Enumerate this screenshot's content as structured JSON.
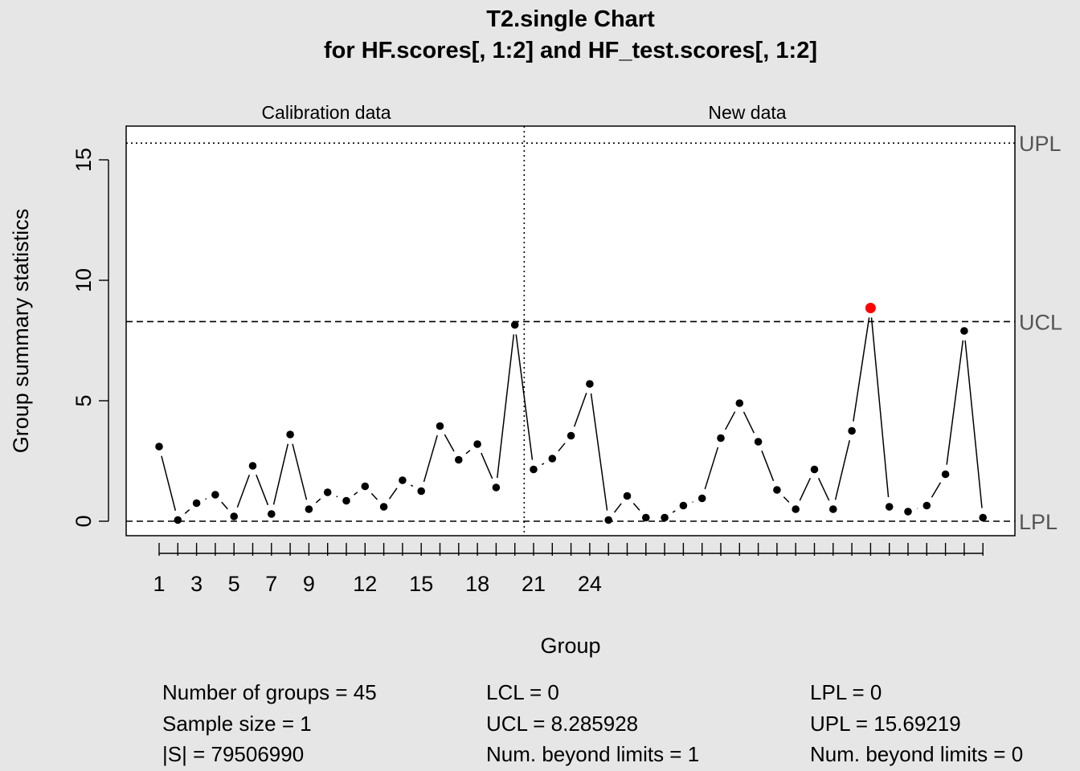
{
  "chart_data": {
    "type": "line",
    "title": "T2.single Chart",
    "subtitle": "for HF.scores[, 1:2] and HF_test.scores[, 1:2]",
    "xlabel": "Group",
    "ylabel": "Group summary statistics",
    "ylim": [
      -0.6,
      16.4
    ],
    "yticks": [
      "0",
      "5",
      "10",
      "15"
    ],
    "xtick_labels": [
      "1",
      "3",
      "5",
      "7",
      "9",
      "12",
      "15",
      "18",
      "21",
      "24"
    ],
    "xtick_label_positions": [
      1,
      3,
      5,
      7,
      9,
      12,
      15,
      18,
      21,
      24
    ],
    "n_groups": 45,
    "sections": {
      "calibration_label": "Calibration data",
      "new_label": "New data",
      "boundary_after_group": 20
    },
    "values": [
      3.1,
      0.05,
      0.75,
      1.1,
      0.2,
      2.3,
      0.3,
      3.6,
      0.5,
      1.2,
      0.85,
      1.45,
      0.6,
      1.7,
      1.25,
      3.95,
      2.55,
      3.2,
      1.4,
      8.15,
      2.15,
      2.6,
      3.55,
      5.7,
      0.05,
      1.05,
      0.15,
      0.15,
      0.65,
      0.95,
      3.45,
      4.9,
      3.3,
      1.3,
      0.5,
      2.15,
      0.5,
      3.75,
      8.85,
      0.6,
      0.4,
      0.65,
      1.95,
      7.9,
      0.15
    ],
    "beyond_limits_groups": [
      39
    ],
    "limits": {
      "UPL": 15.69219,
      "UCL": 8.285928,
      "LCL": 0,
      "LPL": 0
    },
    "limit_labels": {
      "upl": "UPL",
      "ucl": "UCL",
      "lower": "LPL"
    },
    "colors": {
      "point": "#000000",
      "violation": "#ff0000",
      "background": "#e6e6e6",
      "plot_area": "#ffffff",
      "limit_label": "#555555"
    }
  },
  "stats": {
    "col1": [
      "Number of groups = 45",
      "Sample size = 1",
      "|S| = 79506990"
    ],
    "col2": [
      "LCL = 0",
      "UCL = 8.285928",
      "Num. beyond limits = 1"
    ],
    "col3": [
      "LPL = 0",
      "UPL = 15.69219",
      "Num. beyond limits = 0"
    ]
  }
}
